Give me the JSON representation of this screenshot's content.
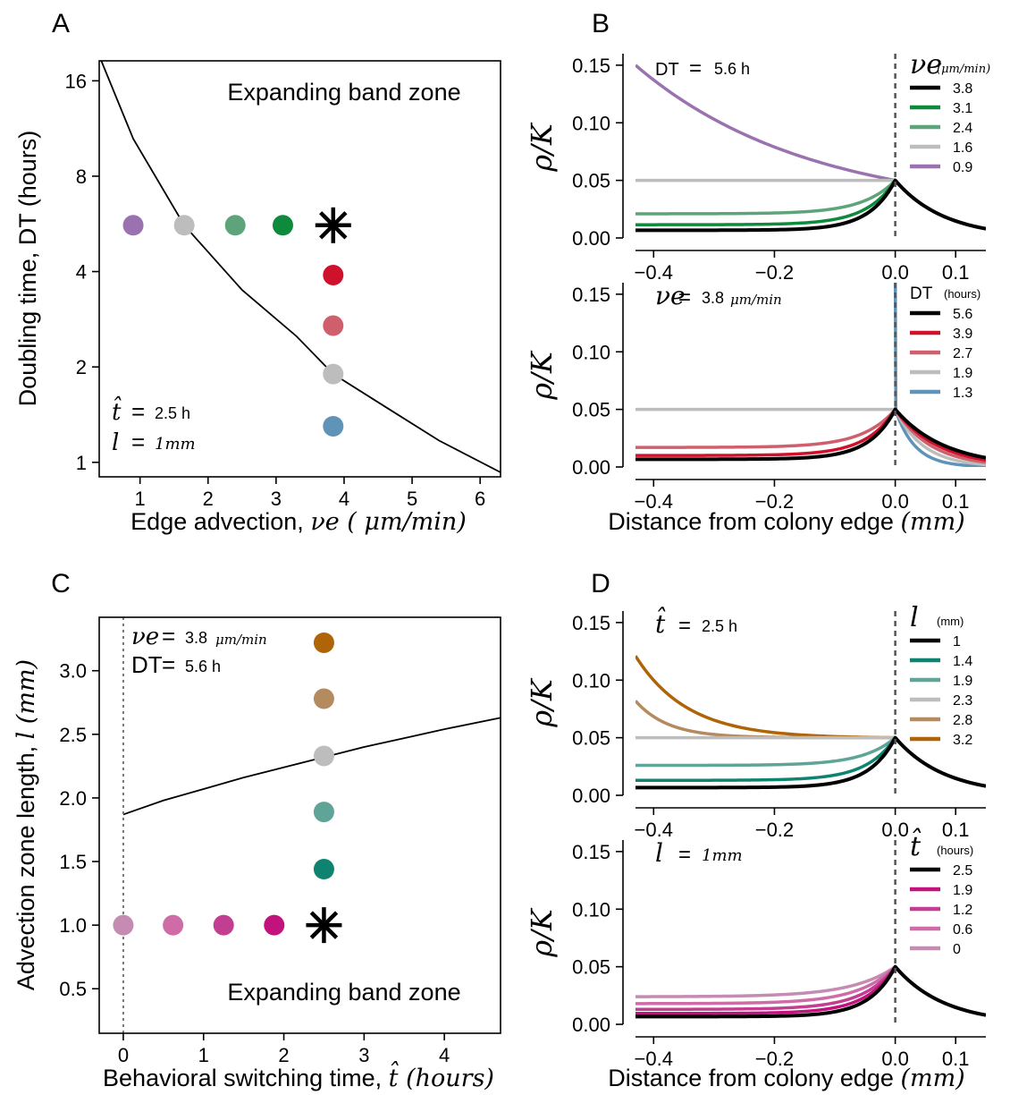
{
  "colors": {
    "black": "#000000",
    "purple": "#9b72b0",
    "gray": "#bdbdbd",
    "green_light": "#5ea47a",
    "green": "#0e8a3c",
    "red": "#d0112b",
    "red_light": "#cf5f6d",
    "blue": "#5f93b8",
    "teal": "#0e8470",
    "teal_light": "#5fa497",
    "tan": "#b48a5f",
    "brown": "#b06408",
    "magenta": "#c2137d",
    "magenta2": "#c23e90",
    "magenta3": "#cf6ba6",
    "pink": "#c68bb2"
  },
  "chart_data": [
    {
      "id": "A",
      "type": "scatter",
      "panel_label": "A",
      "xlabel": "Edge advection, ",
      "xlabel_math": "νe ( μm/min)",
      "ylabel": "Doubling time, DT (hours)",
      "y_scale": "log",
      "xlim": [
        0.4,
        6.3
      ],
      "ylim": [
        0.9,
        18.5
      ],
      "xticks": [
        1,
        2,
        3,
        4,
        5,
        6
      ],
      "yticks": [
        1,
        2,
        4,
        8,
        16
      ],
      "annotation": "Expanding band zone",
      "param_lines": [
        {
          "sym": "t̂",
          "eq": "=",
          "val": "2.5 h"
        },
        {
          "sym": "l",
          "eq": "=",
          "val": "1mm"
        }
      ],
      "curve": {
        "x": [
          0.4,
          0.9,
          1.65,
          2.5,
          3.3,
          3.84,
          4.6,
          5.4,
          6.3
        ],
        "y": [
          19.2,
          10.5,
          5.6,
          3.5,
          2.5,
          1.9,
          1.5,
          1.17,
          0.93
        ]
      },
      "points": [
        {
          "x": 0.9,
          "y": 5.6,
          "color": "purple"
        },
        {
          "x": 1.65,
          "y": 5.6,
          "color": "gray"
        },
        {
          "x": 2.4,
          "y": 5.6,
          "color": "green_light"
        },
        {
          "x": 3.1,
          "y": 5.6,
          "color": "green"
        },
        {
          "x": 3.84,
          "y": 3.9,
          "color": "red"
        },
        {
          "x": 3.84,
          "y": 2.7,
          "color": "red_light"
        },
        {
          "x": 3.84,
          "y": 1.9,
          "color": "gray"
        },
        {
          "x": 3.84,
          "y": 1.3,
          "color": "blue"
        }
      ],
      "star": {
        "x": 3.84,
        "y": 5.6
      }
    },
    {
      "id": "B1",
      "type": "line",
      "panel_label": "B",
      "ylabel": "ρ/K",
      "xlim": [
        -0.43,
        0.15
      ],
      "ylim": [
        0.0,
        0.16
      ],
      "xticks": [
        -0.4,
        -0.2,
        0.0,
        0.1
      ],
      "yticks": [
        0.0,
        0.05,
        0.1,
        0.15
      ],
      "note": {
        "lhs": "DT",
        "eq": "=",
        "val": "5.6 h"
      },
      "legend_title": {
        "sym": "νe",
        "unit": "(μm/min)"
      },
      "series": [
        {
          "name": "3.8",
          "color": "black",
          "tip": 0.05,
          "edge": 0.0067,
          "k": 10
        },
        {
          "name": "3.1",
          "color": "green",
          "tip": 0.05,
          "edge": 0.0115,
          "k": 9
        },
        {
          "name": "2.4",
          "color": "green_light",
          "tip": 0.05,
          "edge": 0.021,
          "k": 8
        },
        {
          "name": "1.6",
          "color": "gray",
          "tip": 0.05,
          "edge": 0.05,
          "k": 6
        },
        {
          "name": "0.9",
          "color": "purple",
          "tip": 0.05,
          "edge": 0.15,
          "k": -1.5
        }
      ],
      "right_tail": {
        "end": 0.008
      }
    },
    {
      "id": "B2",
      "type": "line",
      "panel_label": "",
      "ylabel": "ρ/K",
      "xlabel": "Distance from colony edge ",
      "xlabel_math": "(mm)",
      "xlim": [
        -0.43,
        0.15
      ],
      "ylim": [
        0.0,
        0.16
      ],
      "xticks": [
        -0.4,
        -0.2,
        0.0,
        0.1
      ],
      "yticks": [
        0.0,
        0.05,
        0.1,
        0.15
      ],
      "note": {
        "lhs": "νe",
        "eq": "=",
        "val": "3.8",
        "unit": "μm/min"
      },
      "legend_title": {
        "sym": "DT",
        "unit": "(hours)"
      },
      "series": [
        {
          "name": "5.6",
          "color": "black",
          "tip": 0.05,
          "edge": 0.0067,
          "k": 10,
          "tail": 0.008
        },
        {
          "name": "3.9",
          "color": "red",
          "tip": 0.05,
          "edge": 0.01,
          "k": 9,
          "tail": 0.006
        },
        {
          "name": "2.7",
          "color": "red_light",
          "tip": 0.05,
          "edge": 0.017,
          "k": 8,
          "tail": 0.004
        },
        {
          "name": "1.9",
          "color": "gray",
          "tip": 0.05,
          "edge": 0.05,
          "k": 6,
          "tail": 0.002
        },
        {
          "name": "1.3",
          "color": "blue",
          "tip": 0.05,
          "edge": 0.16,
          "k": 0,
          "tail": 0.0005,
          "spike": true
        }
      ]
    },
    {
      "id": "C",
      "type": "scatter",
      "panel_label": "C",
      "xlabel": "Behavioral switching time, ",
      "xlabel_math": "t̂ (hours)",
      "ylabel": "Advection zone length, ",
      "ylabel_math": "l (mm)",
      "xlim": [
        -0.3,
        4.7
      ],
      "ylim": [
        0.15,
        3.42
      ],
      "xticks": [
        0,
        1,
        2,
        3,
        4
      ],
      "yticks": [
        0.5,
        1.0,
        1.5,
        2.0,
        2.5,
        3.0
      ],
      "annotation": "Expanding band zone",
      "param_lines": [
        {
          "sym": "νe",
          "eq": "=",
          "val": "3.8",
          "unit": "μm/min"
        },
        {
          "sym": "DT",
          "eq": "=",
          "val": "5.6 h"
        }
      ],
      "curve": {
        "x": [
          0,
          0.5,
          1.0,
          1.5,
          2.0,
          2.5,
          3.0,
          3.5,
          4.0,
          4.7
        ],
        "y": [
          1.87,
          1.98,
          2.07,
          2.16,
          2.24,
          2.32,
          2.4,
          2.47,
          2.54,
          2.63
        ]
      },
      "points": [
        {
          "x": 0.0,
          "y": 1.0,
          "color": "pink"
        },
        {
          "x": 0.62,
          "y": 1.0,
          "color": "magenta3"
        },
        {
          "x": 1.25,
          "y": 1.0,
          "color": "magenta2"
        },
        {
          "x": 1.88,
          "y": 1.0,
          "color": "magenta"
        },
        {
          "x": 2.5,
          "y": 1.44,
          "color": "teal"
        },
        {
          "x": 2.5,
          "y": 1.89,
          "color": "teal_light"
        },
        {
          "x": 2.5,
          "y": 2.33,
          "color": "gray"
        },
        {
          "x": 2.5,
          "y": 2.78,
          "color": "tan"
        },
        {
          "x": 2.5,
          "y": 3.22,
          "color": "brown"
        }
      ],
      "star": {
        "x": 2.5,
        "y": 1.0
      },
      "vline_x": 0
    },
    {
      "id": "D1",
      "type": "line",
      "panel_label": "D",
      "ylabel": "ρ/K",
      "xlim": [
        -0.43,
        0.15
      ],
      "ylim": [
        0.0,
        0.16
      ],
      "xticks": [
        -0.4,
        -0.2,
        0.0,
        0.1
      ],
      "yticks": [
        0.0,
        0.05,
        0.1,
        0.15
      ],
      "note": {
        "lhs": "t̂",
        "eq": "=",
        "val": "2.5 h"
      },
      "legend_title": {
        "sym": "l",
        "unit": "(mm)"
      },
      "series": [
        {
          "name": "1",
          "color": "black",
          "tip": 0.05,
          "edge": 0.0067,
          "k": 10
        },
        {
          "name": "1.4",
          "color": "teal",
          "tip": 0.05,
          "edge": 0.013,
          "k": 9
        },
        {
          "name": "1.9",
          "color": "teal_light",
          "tip": 0.05,
          "edge": 0.026,
          "k": 8
        },
        {
          "name": "2.3",
          "color": "gray",
          "tip": 0.05,
          "edge": 0.05,
          "k": 6
        },
        {
          "name": "2.8",
          "color": "tan",
          "tip": 0.05,
          "edge": 0.082,
          "k": -8
        },
        {
          "name": "3.2",
          "color": "brown",
          "tip": 0.05,
          "edge": 0.121,
          "k": -5
        }
      ],
      "right_tail": {
        "end": 0.008
      }
    },
    {
      "id": "D2",
      "type": "line",
      "panel_label": "",
      "ylabel": "ρ/K",
      "xlabel": "Distance from colony edge ",
      "xlabel_math": "(mm)",
      "xlim": [
        -0.43,
        0.15
      ],
      "ylim": [
        0.0,
        0.16
      ],
      "xticks": [
        -0.4,
        -0.2,
        0.0,
        0.1
      ],
      "yticks": [
        0.0,
        0.05,
        0.1,
        0.15
      ],
      "note": {
        "lhs": "l",
        "eq": "=",
        "val": "1mm"
      },
      "legend_title": {
        "sym": "t̂",
        "unit": "(hours)"
      },
      "series": [
        {
          "name": "2.5",
          "color": "black",
          "tip": 0.05,
          "edge": 0.0067,
          "k": 10
        },
        {
          "name": "1.9",
          "color": "magenta",
          "tip": 0.05,
          "edge": 0.0095,
          "k": 9
        },
        {
          "name": "1.2",
          "color": "magenta2",
          "tip": 0.05,
          "edge": 0.013,
          "k": 8
        },
        {
          "name": "0.6",
          "color": "magenta3",
          "tip": 0.05,
          "edge": 0.018,
          "k": 7
        },
        {
          "name": "0",
          "color": "pink",
          "tip": 0.05,
          "edge": 0.024,
          "k": 6
        }
      ],
      "right_tail": {
        "end": 0.008
      }
    }
  ]
}
